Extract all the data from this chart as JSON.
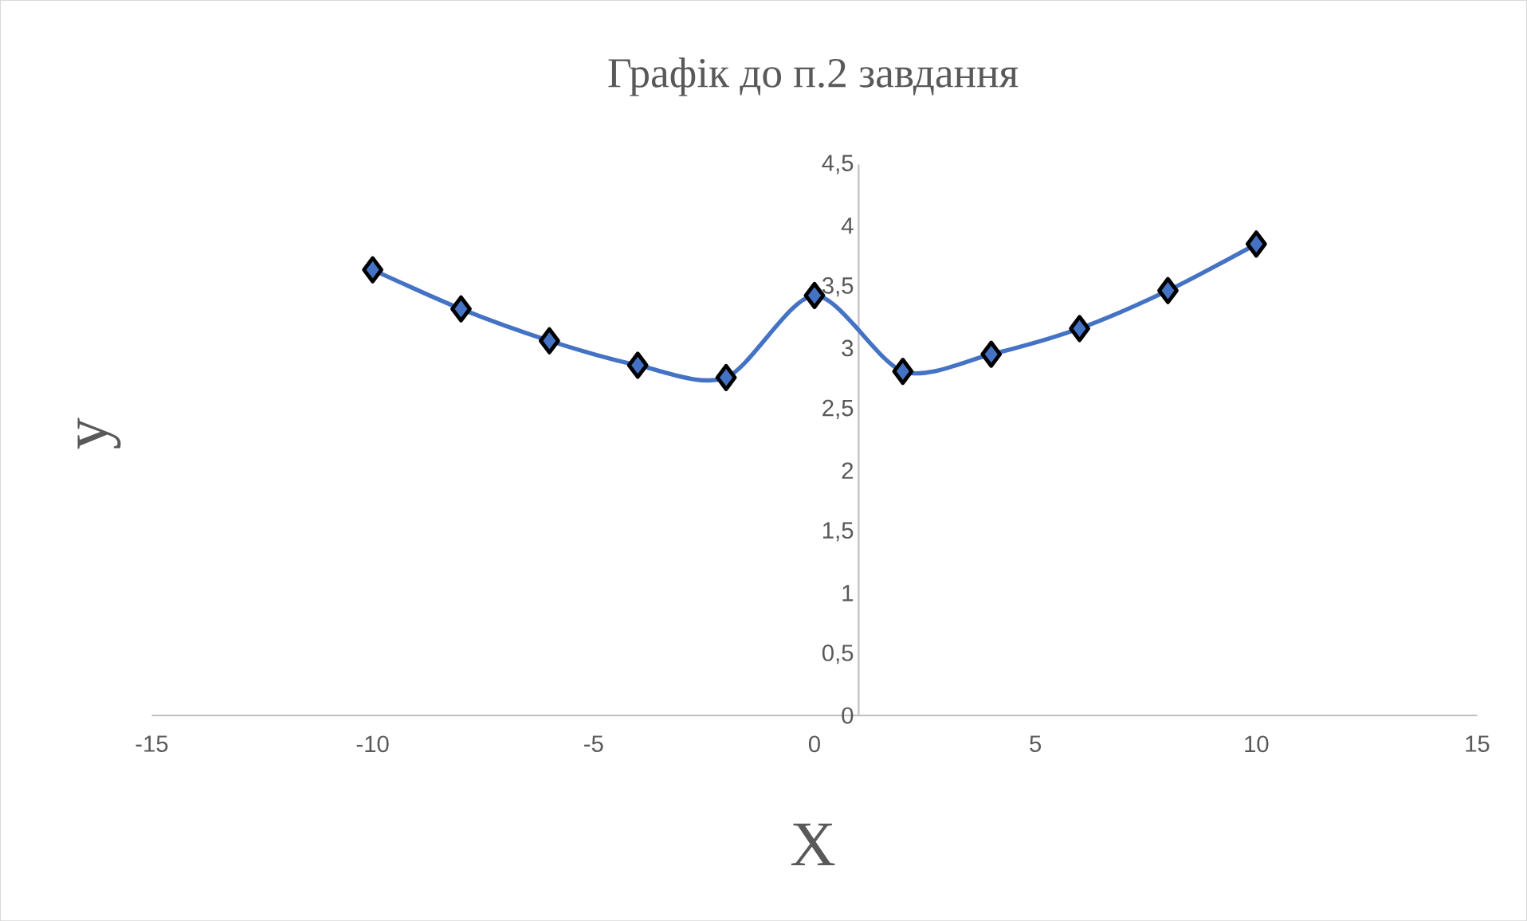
{
  "chart_data": {
    "type": "line",
    "title": "Графік до п.2 завдання",
    "xlabel": "X",
    "ylabel": "y",
    "x": [
      -10,
      -8,
      -6,
      -4,
      -2,
      0,
      2,
      4,
      6,
      8,
      10
    ],
    "series": [
      {
        "color": "#4472c4",
        "values": [
          3.64,
          3.32,
          3.06,
          2.86,
          2.76,
          3.43,
          2.81,
          2.95,
          3.16,
          3.47,
          3.85
        ]
      }
    ],
    "xlim": [
      -15,
      15
    ],
    "ylim": [
      0,
      4.5
    ],
    "xticks": [
      -15,
      -10,
      -5,
      0,
      5,
      10,
      15
    ],
    "yticks": [
      0,
      {
        "value": 0.5,
        "label": "0,5"
      },
      1,
      {
        "value": 1.5,
        "label": "1,5"
      },
      2,
      {
        "value": 2.5,
        "label": "2,5"
      },
      3,
      {
        "value": 3.5,
        "label": "3,5"
      },
      4,
      {
        "value": 4.5,
        "label": "4,5"
      }
    ],
    "marker": "diamond",
    "line_style": "solid",
    "grid": false,
    "legend": false
  }
}
